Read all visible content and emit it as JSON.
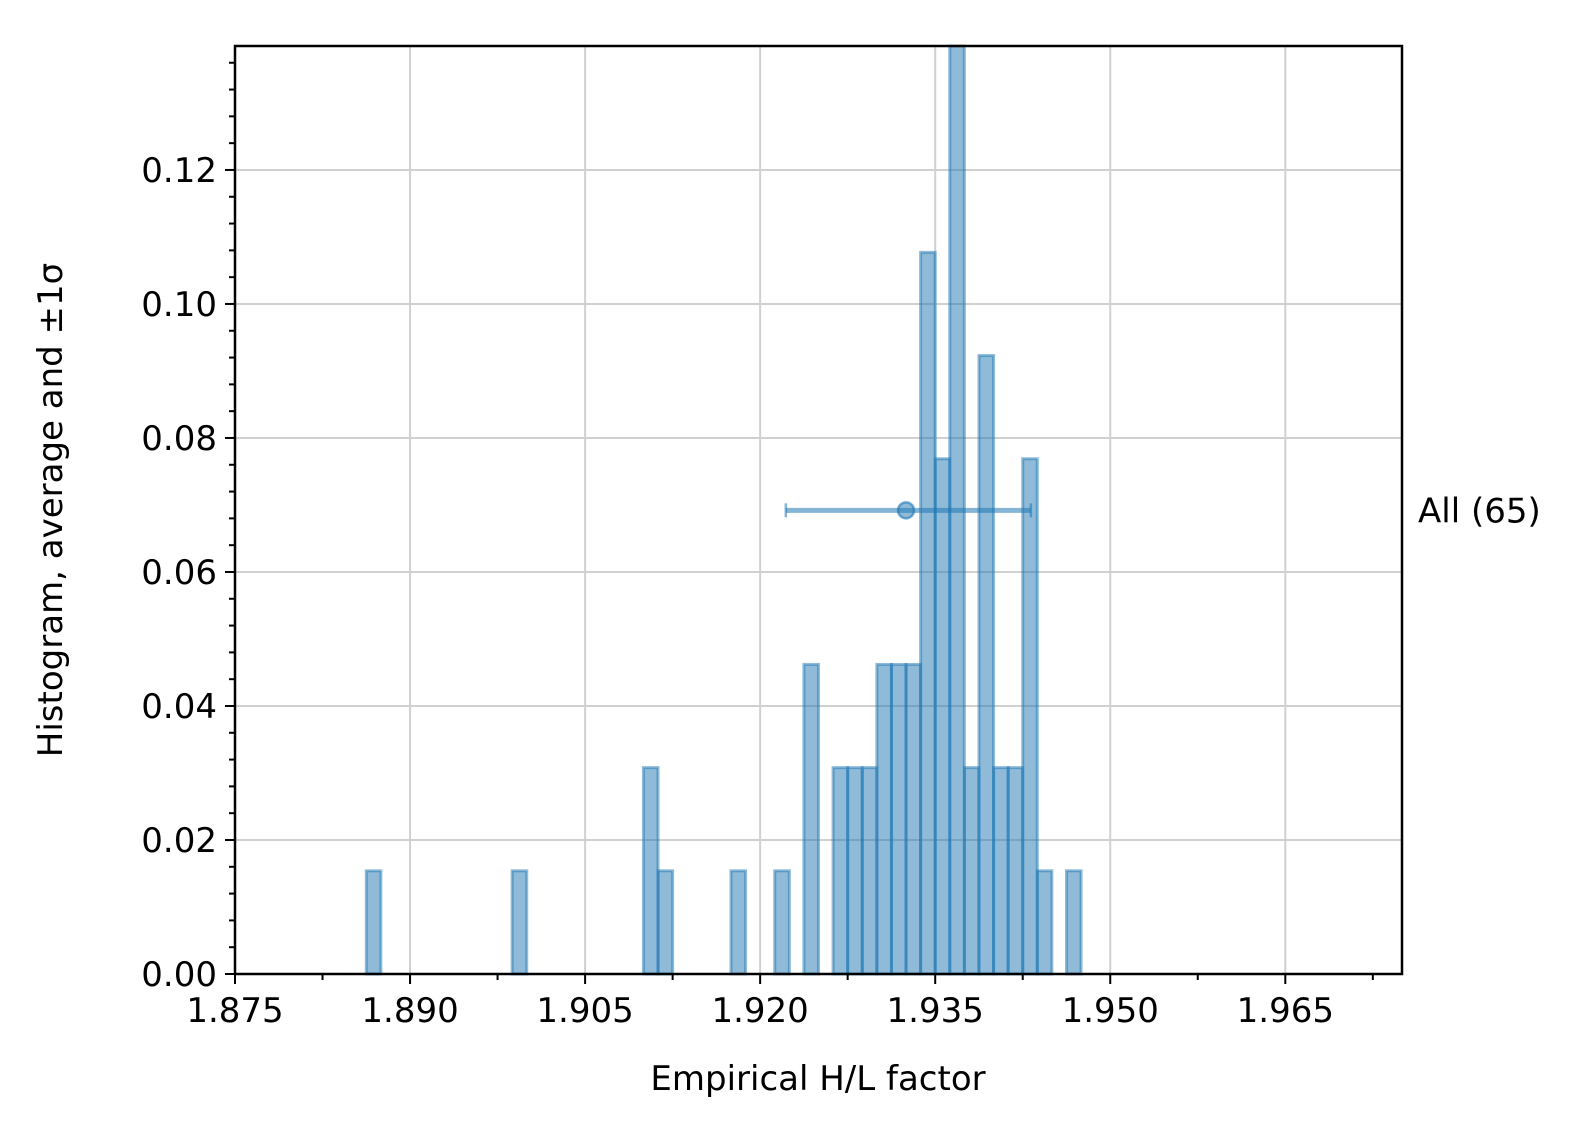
{
  "chart_data": {
    "type": "histogram",
    "xlabel": "Empirical H/L factor",
    "ylabel": "Histogram, average and ±1σ",
    "xlim": [
      1.875,
      1.975
    ],
    "ylim": [
      0,
      0.1385
    ],
    "x_ticks": [
      1.875,
      1.89,
      1.905,
      1.92,
      1.935,
      1.95,
      1.965
    ],
    "x_tick_labels": [
      "1.875",
      "1.890",
      "1.905",
      "1.920",
      "1.935",
      "1.950",
      "1.965"
    ],
    "y_ticks": [
      0,
      0.02,
      0.04,
      0.06,
      0.08,
      0.1,
      0.12
    ],
    "y_tick_labels": [
      "0.00",
      "0.02",
      "0.04",
      "0.06",
      "0.08",
      "0.10",
      "0.12"
    ],
    "grid": true,
    "color": "#1f77b4",
    "bin_width": 0.00125,
    "bins": [
      {
        "x": 1.88625,
        "y": 0.0154
      },
      {
        "x": 1.89875,
        "y": 0.0154
      },
      {
        "x": 1.91,
        "y": 0.0308
      },
      {
        "x": 1.91125,
        "y": 0.0154
      },
      {
        "x": 1.9175,
        "y": 0.0154
      },
      {
        "x": 1.92125,
        "y": 0.0154
      },
      {
        "x": 1.92375,
        "y": 0.0462
      },
      {
        "x": 1.92625,
        "y": 0.0308
      },
      {
        "x": 1.9275,
        "y": 0.0308
      },
      {
        "x": 1.92875,
        "y": 0.0308
      },
      {
        "x": 1.93,
        "y": 0.0462
      },
      {
        "x": 1.93125,
        "y": 0.0462
      },
      {
        "x": 1.9325,
        "y": 0.0462
      },
      {
        "x": 1.93375,
        "y": 0.1077
      },
      {
        "x": 1.935,
        "y": 0.0769
      },
      {
        "x": 1.93625,
        "y": 0.1385
      },
      {
        "x": 1.9375,
        "y": 0.0308
      },
      {
        "x": 1.93875,
        "y": 0.0923
      },
      {
        "x": 1.94,
        "y": 0.0308
      },
      {
        "x": 1.94125,
        "y": 0.0308
      },
      {
        "x": 1.9425,
        "y": 0.0769
      },
      {
        "x": 1.94375,
        "y": 0.0154
      },
      {
        "x": 1.94625,
        "y": 0.0154
      }
    ],
    "error_bar": {
      "label": "All (65)",
      "mean": 1.9325,
      "xerr_low": 1.9222,
      "xerr_high": 1.9432,
      "y": 0.0692
    }
  }
}
